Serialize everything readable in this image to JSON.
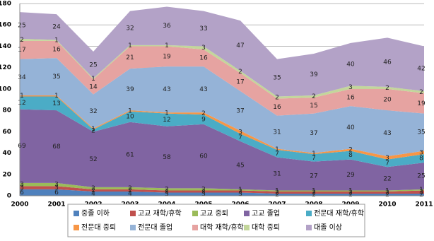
{
  "chart_data": {
    "type": "stacked-area",
    "categories": [
      "2000",
      "2001",
      "2002",
      "2003",
      "2004",
      "2005",
      "2006",
      "2007",
      "2008",
      "2009",
      "2010",
      "2011"
    ],
    "ylim": [
      0,
      180
    ],
    "yticks": [
      0,
      20,
      40,
      60,
      80,
      100,
      120,
      140,
      160,
      180
    ],
    "grid": true,
    "series": [
      {
        "name": "중졸 이하",
        "color": "#4f81bd",
        "values": [
          6,
          6,
          4,
          4,
          3,
          3,
          3,
          2,
          2,
          2,
          2,
          2
        ]
      },
      {
        "name": "고교 재학/휴학",
        "color": "#c0504d",
        "values": [
          3,
          3,
          2,
          2,
          2,
          2,
          2,
          2,
          2,
          2,
          2,
          3
        ]
      },
      {
        "name": "고교 중퇴",
        "color": "#9bbb59",
        "values": [
          3,
          3,
          2,
          2,
          2,
          2,
          1,
          1,
          1,
          1,
          1,
          1
        ]
      },
      {
        "name": "고교 졸업",
        "color": "#8064a2",
        "values": [
          69,
          68,
          52,
          61,
          58,
          60,
          45,
          31,
          27,
          29,
          22,
          25
        ]
      },
      {
        "name": "전문대 재학/휴학",
        "color": "#4bacc6",
        "values": [
          12,
          13,
          2,
          10,
          12,
          9,
          7,
          7,
          7,
          8,
          7,
          8
        ]
      },
      {
        "name": "전문대 중퇴",
        "color": "#f79646",
        "values": [
          1,
          1,
          1,
          1,
          1,
          2,
          3,
          1,
          1,
          2,
          3,
          3
        ]
      },
      {
        "name": "전문대 졸업",
        "color": "#95b3d7",
        "values": [
          34,
          35,
          32,
          39,
          43,
          43,
          37,
          31,
          37,
          40,
          43,
          35
        ]
      },
      {
        "name": "대학 재학/휴학",
        "color": "#e6a3a1",
        "values": [
          17,
          16,
          14,
          21,
          19,
          16,
          17,
          16,
          15,
          16,
          20,
          19
        ]
      },
      {
        "name": "대학 중퇴",
        "color": "#c3d69b",
        "values": [
          2,
          1,
          1,
          1,
          1,
          3,
          2,
          2,
          2,
          3,
          2,
          2
        ]
      },
      {
        "name": "대졸 이상",
        "color": "#b3a2c7",
        "values": [
          25,
          24,
          25,
          32,
          36,
          33,
          47,
          35,
          39,
          40,
          46,
          42
        ]
      }
    ]
  }
}
